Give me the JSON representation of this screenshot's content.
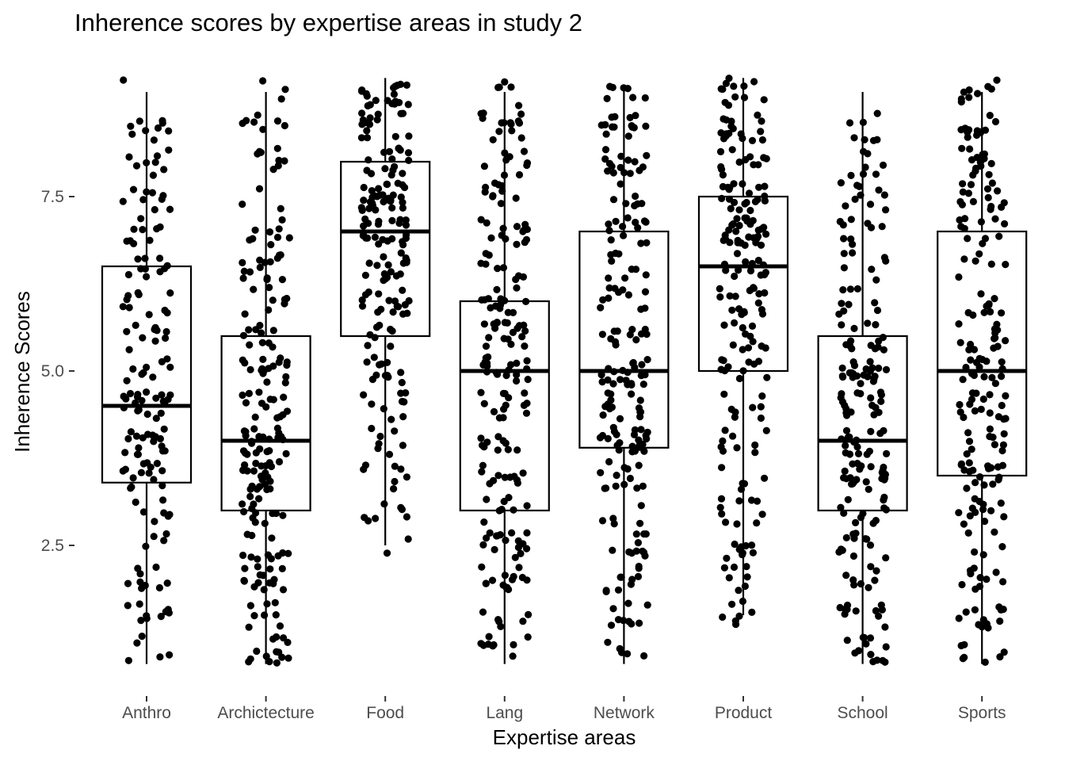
{
  "chart_data": {
    "type": "box",
    "title": "Inherence scores by expertise areas in study 2",
    "xlabel": "Expertise areas",
    "ylabel": "Inherence Scores",
    "ylim": [
      0.6,
      9.3
    ],
    "yticks": [
      2.5,
      5.0,
      7.5
    ],
    "ytick_labels": [
      "2.5",
      "5.0",
      "7.5"
    ],
    "grid": false,
    "legend": "none",
    "point_color": "#000000",
    "box_fill": "#ffffff",
    "categories": [
      "Anthro",
      "Archictecture",
      "Food",
      "Lang",
      "Network",
      "Product",
      "School",
      "Sports"
    ],
    "boxes": [
      {
        "category": "Anthro",
        "whisker_low": 0.8,
        "q1": 3.4,
        "median": 4.5,
        "q3": 6.5,
        "whisker_high": 9.0,
        "n_points": 160
      },
      {
        "category": "Archictecture",
        "whisker_low": 0.8,
        "q1": 3.0,
        "median": 4.0,
        "q3": 5.5,
        "whisker_high": 9.0,
        "n_points": 200
      },
      {
        "category": "Food",
        "whisker_low": 2.5,
        "q1": 5.5,
        "median": 7.0,
        "q3": 8.0,
        "whisker_high": 9.2,
        "n_points": 190
      },
      {
        "category": "Lang",
        "whisker_low": 0.8,
        "q1": 3.0,
        "median": 5.0,
        "q3": 6.0,
        "whisker_high": 9.0,
        "n_points": 200
      },
      {
        "category": "Network",
        "whisker_low": 0.8,
        "q1": 3.9,
        "median": 5.0,
        "q3": 7.0,
        "whisker_high": 9.1,
        "n_points": 200
      },
      {
        "category": "Product",
        "whisker_low": 1.5,
        "q1": 5.0,
        "median": 6.5,
        "q3": 7.5,
        "whisker_high": 9.2,
        "n_points": 200
      },
      {
        "category": "School",
        "whisker_low": 0.8,
        "q1": 3.0,
        "median": 4.0,
        "q3": 5.5,
        "whisker_high": 9.0,
        "n_points": 200
      },
      {
        "category": "Sports",
        "whisker_low": 0.8,
        "q1": 3.5,
        "median": 5.0,
        "q3": 7.0,
        "whisker_high": 9.0,
        "n_points": 200
      }
    ]
  }
}
